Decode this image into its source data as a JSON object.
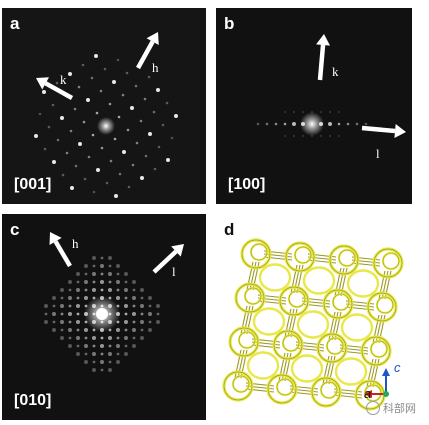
{
  "panels": {
    "a": {
      "label": "a",
      "zone_axis": "[001]",
      "directions": [
        "k",
        "h"
      ]
    },
    "b": {
      "label": "b",
      "zone_axis": "[100]",
      "directions": [
        "k",
        "l"
      ]
    },
    "c": {
      "label": "c",
      "zone_axis": "[010]",
      "directions": [
        "h",
        "l"
      ]
    },
    "d": {
      "label": "d",
      "axes": {
        "c": "c",
        "a": "a"
      }
    }
  },
  "colors": {
    "framework": "#e8e84a",
    "framework_dark": "#9a9a20",
    "axis_c": "#2255cc",
    "axis_a": "#cc2222",
    "origin": "#22aa55"
  },
  "watermark": "科部网"
}
